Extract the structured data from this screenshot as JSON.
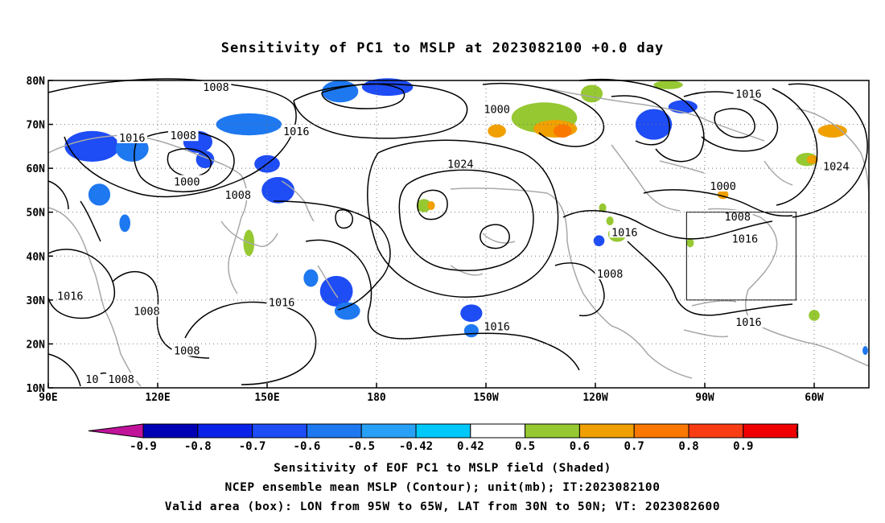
{
  "title": "Sensitivity of PC1 to MSLP at 2023082100 +0.0 day",
  "axes": {
    "lon_ticks": [
      "90E",
      "120E",
      "150E",
      "180",
      "150W",
      "120W",
      "90W",
      "60W"
    ],
    "lon_values": [
      90,
      120,
      150,
      180,
      210,
      240,
      270,
      300
    ],
    "lat_ticks": [
      "80N",
      "70N",
      "60N",
      "50N",
      "40N",
      "30N",
      "20N",
      "10N"
    ],
    "lat_values": [
      80,
      70,
      60,
      50,
      40,
      30,
      20,
      10
    ],
    "lon_range": [
      90,
      315
    ],
    "lat_range": [
      10,
      80
    ],
    "grid": "dotted"
  },
  "colorbar": {
    "labels": [
      "-0.9",
      "-0.8",
      "-0.7",
      "-0.6",
      "-0.5",
      "-0.42",
      "0.42",
      "0.5",
      "0.6",
      "0.7",
      "0.8",
      "0.9"
    ],
    "under_color": "#c0139a",
    "colors": [
      "#0000b4",
      "#0a22e8",
      "#1e4cf5",
      "#1e78f0",
      "#28a0f5",
      "#00c8fa",
      "#ffffff",
      "#96c832",
      "#f0a000",
      "#fa7800",
      "#fa3c14",
      "#f00000"
    ],
    "over_color": "#f5a0c8"
  },
  "contours": {
    "unit": "mb",
    "labels": [
      {
        "text": "1008",
        "lon": 136,
        "lat": 78.5
      },
      {
        "text": "1000",
        "lon": 213,
        "lat": 73.5
      },
      {
        "text": "1016",
        "lon": 282,
        "lat": 77
      },
      {
        "text": "1016",
        "lon": 113,
        "lat": 67
      },
      {
        "text": "1008",
        "lon": 127,
        "lat": 67.5
      },
      {
        "text": "1016",
        "lon": 158,
        "lat": 68.5
      },
      {
        "text": "1024",
        "lon": 203,
        "lat": 61
      },
      {
        "text": "1000",
        "lon": 128,
        "lat": 57
      },
      {
        "text": "1008",
        "lon": 142,
        "lat": 54
      },
      {
        "text": "1000",
        "lon": 275,
        "lat": 56
      },
      {
        "text": "1024",
        "lon": 306,
        "lat": 60.5
      },
      {
        "text": "1008",
        "lon": 279,
        "lat": 49
      },
      {
        "text": "1016",
        "lon": 248,
        "lat": 45.5
      },
      {
        "text": "1016",
        "lon": 281,
        "lat": 44
      },
      {
        "text": "1008",
        "lon": 244,
        "lat": 36
      },
      {
        "text": "1016",
        "lon": 96,
        "lat": 31
      },
      {
        "text": "1008",
        "lon": 117,
        "lat": 27.5
      },
      {
        "text": "1016",
        "lon": 154,
        "lat": 29.5
      },
      {
        "text": "1016",
        "lon": 213,
        "lat": 24
      },
      {
        "text": "1016",
        "lon": 282,
        "lat": 25
      },
      {
        "text": "1008",
        "lon": 128,
        "lat": 18.5
      },
      {
        "text": "1008",
        "lon": 110,
        "lat": 12
      },
      {
        "text": "10",
        "lon": 102,
        "lat": 12
      }
    ]
  },
  "shading": [
    {
      "lon": 102,
      "lat": 65,
      "w": 15,
      "h": 7,
      "level": -0.6
    },
    {
      "lon": 113,
      "lat": 64.5,
      "w": 9,
      "h": 6,
      "level": -0.5
    },
    {
      "lon": 131,
      "lat": 66,
      "w": 8,
      "h": 5,
      "level": -0.6
    },
    {
      "lon": 145,
      "lat": 70,
      "w": 18,
      "h": 5,
      "level": -0.5
    },
    {
      "lon": 150,
      "lat": 61,
      "w": 7,
      "h": 4,
      "level": -0.6
    },
    {
      "lon": 133,
      "lat": 62,
      "w": 5,
      "h": 4,
      "level": -0.6
    },
    {
      "lon": 153,
      "lat": 55,
      "w": 9,
      "h": 6,
      "level": -0.6
    },
    {
      "lon": 104,
      "lat": 54,
      "w": 6,
      "h": 5,
      "level": -0.5
    },
    {
      "lon": 111,
      "lat": 47.5,
      "w": 3,
      "h": 4,
      "level": -0.5
    },
    {
      "lon": 170,
      "lat": 77.5,
      "w": 10,
      "h": 5,
      "level": -0.5
    },
    {
      "lon": 183,
      "lat": 78.5,
      "w": 14,
      "h": 4,
      "level": -0.6
    },
    {
      "lon": 256,
      "lat": 70,
      "w": 10,
      "h": 7,
      "level": -0.6
    },
    {
      "lon": 264,
      "lat": 74,
      "w": 8,
      "h": 3,
      "level": -0.6
    },
    {
      "lon": 169,
      "lat": 32,
      "w": 9,
      "h": 7,
      "level": -0.6
    },
    {
      "lon": 172,
      "lat": 27.5,
      "w": 7,
      "h": 4,
      "level": -0.5
    },
    {
      "lon": 162,
      "lat": 35,
      "w": 4,
      "h": 4,
      "level": -0.5
    },
    {
      "lon": 206,
      "lat": 27,
      "w": 6,
      "h": 4,
      "level": -0.6
    },
    {
      "lon": 206,
      "lat": 23,
      "w": 4,
      "h": 3,
      "level": -0.5
    },
    {
      "lon": 241,
      "lat": 43.5,
      "w": 3,
      "h": 2.5,
      "level": -0.6
    },
    {
      "lon": 226,
      "lat": 71.5,
      "w": 18,
      "h": 7,
      "level": 0.5
    },
    {
      "lon": 229,
      "lat": 69,
      "w": 12,
      "h": 4,
      "level": 0.6
    },
    {
      "lon": 231,
      "lat": 68.5,
      "w": 5,
      "h": 3,
      "level": 0.7
    },
    {
      "lon": 213,
      "lat": 68.5,
      "w": 5,
      "h": 3,
      "level": 0.6
    },
    {
      "lon": 239,
      "lat": 77,
      "w": 6,
      "h": 4,
      "level": 0.5
    },
    {
      "lon": 260,
      "lat": 79,
      "w": 8,
      "h": 2,
      "level": 0.5
    },
    {
      "lon": 246,
      "lat": 45,
      "w": 5,
      "h": 3.5,
      "level": 0.5
    },
    {
      "lon": 247.5,
      "lat": 45.5,
      "w": 3,
      "h": 2.5,
      "level": 0.6
    },
    {
      "lon": 305,
      "lat": 68.5,
      "w": 8,
      "h": 3,
      "level": 0.6
    },
    {
      "lon": 298,
      "lat": 62,
      "w": 6,
      "h": 3,
      "level": 0.5
    },
    {
      "lon": 299.5,
      "lat": 62,
      "w": 3,
      "h": 2,
      "level": 0.6
    },
    {
      "lon": 275,
      "lat": 54,
      "w": 3,
      "h": 2,
      "level": 0.6
    },
    {
      "lon": 193,
      "lat": 51.5,
      "w": 4,
      "h": 3,
      "level": 0.5
    },
    {
      "lon": 195,
      "lat": 51.5,
      "w": 2,
      "h": 2,
      "level": 0.6
    },
    {
      "lon": 145,
      "lat": 43,
      "w": 3,
      "h": 6,
      "level": 0.5
    },
    {
      "lon": 300,
      "lat": 26.5,
      "w": 3,
      "h": 2.5,
      "level": 0.5
    },
    {
      "lon": 242,
      "lat": 51,
      "w": 2,
      "h": 2,
      "level": 0.5
    },
    {
      "lon": 244,
      "lat": 48,
      "w": 2,
      "h": 2,
      "level": 0.5
    },
    {
      "lon": 247,
      "lat": 36.5,
      "w": 1.5,
      "h": 2,
      "level": 0.5
    },
    {
      "lon": 266,
      "lat": 43,
      "w": 2,
      "h": 2,
      "level": 0.5
    },
    {
      "lon": 314,
      "lat": 18.5,
      "w": 1.5,
      "h": 2,
      "level": -0.5
    }
  ],
  "valid_box": {
    "lon_min": 265,
    "lon_max": 295,
    "lat_min": 30,
    "lat_max": 50
  },
  "captions": [
    "Sensitivity of EOF PC1 to MSLP field (Shaded)",
    "NCEP ensemble mean MSLP (Contour); unit(mb); IT:2023082100",
    "Valid area (box): LON from 95W to 65W, LAT from 30N to 50N; VT: 2023082600"
  ]
}
